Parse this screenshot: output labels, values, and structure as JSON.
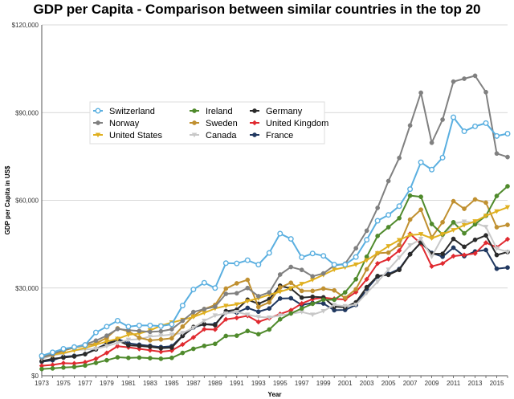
{
  "chart_data": {
    "type": "line",
    "title": "GDP per Capita - Comparison between similar countries in the top 20",
    "xlabel": "Year",
    "ylabel": "GDP per Capita in US$",
    "ylim": [
      0,
      120000
    ],
    "xlim": [
      1973,
      2016
    ],
    "yticks": [
      0,
      30000,
      60000,
      90000,
      120000
    ],
    "ytick_labels": [
      "$0",
      "$30,000",
      "$60,000",
      "$90,000",
      "$120,000"
    ],
    "xtick_labels": [
      "1973",
      "1975",
      "1977",
      "1979",
      "1981",
      "1983",
      "1985",
      "1987",
      "1989",
      "1991",
      "1993",
      "1995",
      "1997",
      "1999",
      "2001",
      "2003",
      "2005",
      "2007",
      "2009",
      "2011",
      "2013",
      "2015"
    ],
    "grid": "horizontal",
    "legend_position": "upper-left",
    "x": [
      1973,
      1974,
      1975,
      1976,
      1977,
      1978,
      1979,
      1980,
      1981,
      1982,
      1983,
      1984,
      1985,
      1986,
      1987,
      1988,
      1989,
      1990,
      1991,
      1992,
      1993,
      1994,
      1995,
      1996,
      1997,
      1998,
      1999,
      2000,
      2001,
      2002,
      2003,
      2004,
      2005,
      2006,
      2007,
      2008,
      2009,
      2010,
      2011,
      2012,
      2013,
      2014,
      2015,
      2016
    ],
    "series": [
      {
        "name": "Switzerland",
        "color": "#5aafe0",
        "marker": "circle-open",
        "values": [
          6800,
          8000,
          9200,
          9800,
          10500,
          14800,
          16800,
          18800,
          16800,
          17200,
          17200,
          17000,
          17600,
          24000,
          29500,
          31800,
          30000,
          38500,
          38400,
          39500,
          38000,
          42000,
          48600,
          46800,
          40500,
          41800,
          41000,
          38000,
          38000,
          40600,
          46500,
          53000,
          55000,
          58000,
          63800,
          73000,
          70500,
          74600,
          88400,
          83600,
          85300,
          86400,
          82000,
          82800
        ]
      },
      {
        "name": "Norway",
        "color": "#808080",
        "marker": "circle",
        "values": [
          6200,
          7400,
          8800,
          9700,
          10700,
          12000,
          13700,
          16000,
          15600,
          15300,
          15000,
          15200,
          15900,
          18800,
          21800,
          22800,
          23600,
          28000,
          28200,
          30000,
          27200,
          28500,
          34600,
          37200,
          36200,
          34000,
          35000,
          37700,
          38300,
          43600,
          49600,
          57400,
          66600,
          74500,
          85600,
          96800,
          79700,
          87600,
          100600,
          101600,
          102600,
          97000,
          76000,
          74800
        ]
      },
      {
        "name": "United States",
        "color": "#e0b020",
        "marker": "triangle-down",
        "values": [
          6700,
          7200,
          7800,
          8600,
          9500,
          10600,
          11700,
          12600,
          14000,
          14400,
          15500,
          17100,
          18200,
          19100,
          20100,
          21500,
          23000,
          23900,
          24400,
          25500,
          26500,
          27700,
          28700,
          29900,
          31400,
          32800,
          34500,
          36300,
          37100,
          38000,
          39500,
          41900,
          44300,
          46400,
          48100,
          48400,
          47000,
          48400,
          49800,
          51500,
          52800,
          54700,
          56200,
          57600
        ]
      },
      {
        "name": "Ireland",
        "color": "#4f8a2c",
        "marker": "circle",
        "values": [
          2300,
          2500,
          2800,
          3000,
          3500,
          4400,
          5300,
          6300,
          6100,
          6200,
          6000,
          5800,
          6100,
          7800,
          9200,
          10200,
          10900,
          13600,
          13700,
          15300,
          14200,
          15800,
          19300,
          21300,
          23000,
          24600,
          26000,
          26000,
          28500,
          33000,
          40700,
          47800,
          50800,
          53900,
          61600,
          61200,
          51900,
          48300,
          52500,
          48700,
          51800,
          54700,
          61500,
          64800
        ]
      },
      {
        "name": "Sweden",
        "color": "#c09030",
        "marker": "circle",
        "values": [
          6300,
          7100,
          8600,
          9600,
          10300,
          11000,
          13000,
          16200,
          15200,
          13000,
          12100,
          12400,
          12800,
          16800,
          20400,
          22800,
          24200,
          29800,
          31600,
          32800,
          23500,
          25100,
          30200,
          31800,
          29000,
          29000,
          29800,
          29200,
          26600,
          29600,
          36400,
          41900,
          42100,
          44700,
          53400,
          56800,
          47300,
          52500,
          59700,
          57100,
          60300,
          59200,
          50800,
          51600
        ]
      },
      {
        "name": "Canada",
        "color": "#c8c8c8",
        "marker": "triangle-down",
        "values": [
          5800,
          7000,
          7500,
          8700,
          9000,
          9200,
          10100,
          11200,
          12300,
          12500,
          13400,
          13700,
          14100,
          14600,
          16400,
          18800,
          20600,
          21300,
          21800,
          20900,
          20100,
          19900,
          20600,
          21200,
          21800,
          20900,
          22100,
          24200,
          23800,
          24300,
          28300,
          32100,
          36300,
          40400,
          44600,
          46800,
          40700,
          47500,
          52100,
          52700,
          52300,
          50900,
          43500,
          42300
        ]
      },
      {
        "name": "Germany",
        "color": "#2a2a2a",
        "marker": "circle",
        "values": [
          5000,
          5800,
          6200,
          6600,
          7400,
          9000,
          10800,
          12100,
          10400,
          10200,
          9900,
          9400,
          9600,
          13600,
          16700,
          17600,
          17300,
          22100,
          22600,
          26000,
          24600,
          26200,
          30800,
          29800,
          26700,
          27000,
          26800,
          23600,
          23400,
          25100,
          30300,
          34100,
          34500,
          36200,
          41500,
          45600,
          41700,
          41700,
          46800,
          44100,
          46500,
          48000,
          41300,
          42300
        ]
      },
      {
        "name": "United Kingdom",
        "color": "#e02a30",
        "marker": "diamond",
        "values": [
          3400,
          3700,
          4300,
          4200,
          4600,
          5800,
          7800,
          10100,
          9700,
          9200,
          8700,
          8200,
          8600,
          10700,
          13100,
          15900,
          15800,
          19300,
          19800,
          20500,
          18400,
          19700,
          21100,
          22400,
          24700,
          26200,
          26700,
          26300,
          26100,
          28600,
          33000,
          38400,
          39900,
          42800,
          48500,
          45100,
          37400,
          38400,
          40900,
          41300,
          41800,
          45500,
          43900,
          46700
        ]
      },
      {
        "name": "France",
        "color": "#203860",
        "marker": "circle",
        "values": [
          4800,
          5300,
          6500,
          6800,
          7400,
          9200,
          10900,
          12600,
          11100,
          10600,
          10200,
          9800,
          10100,
          13700,
          16500,
          17600,
          17600,
          21700,
          21600,
          23200,
          21900,
          23000,
          26400,
          26500,
          24200,
          24900,
          24700,
          22400,
          22500,
          24200,
          29600,
          33900,
          34800,
          36500,
          41600,
          45500,
          42000,
          40700,
          43800,
          40900,
          42500,
          43000,
          36600,
          37000
        ]
      }
    ]
  }
}
